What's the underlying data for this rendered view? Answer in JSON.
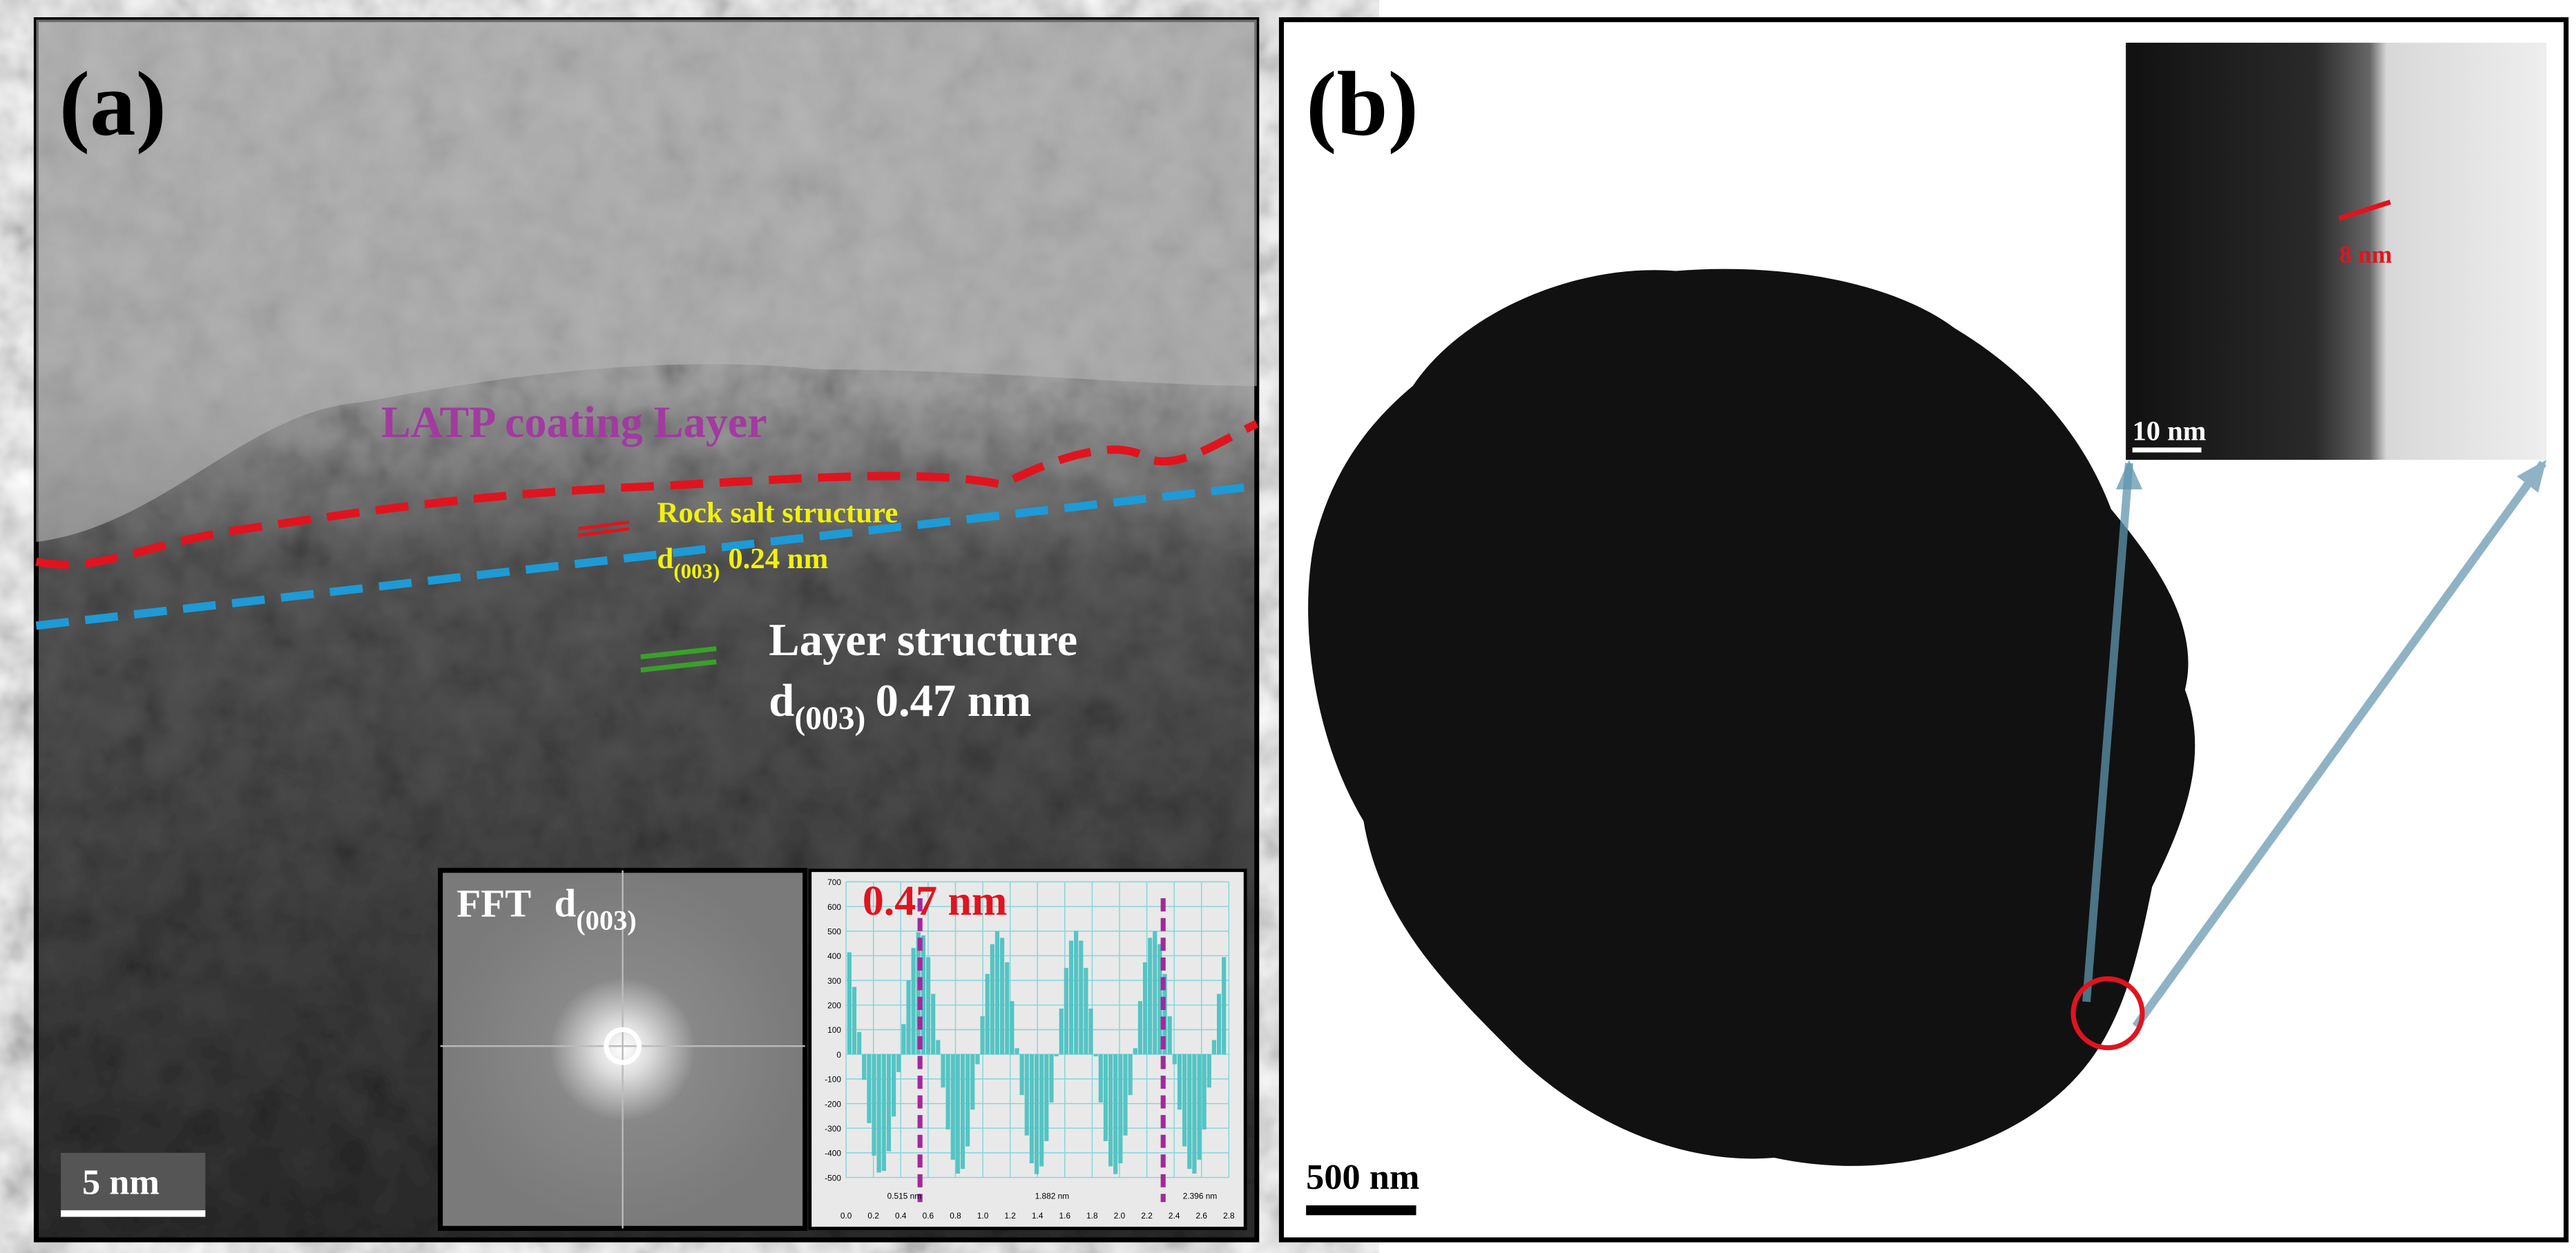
{
  "panel_a": {
    "label": "(a)",
    "coating_label": "LATP coating Layer",
    "rock_salt": {
      "title": "Rock salt structure",
      "d": "d",
      "sub": "(003)",
      "spacing": "0.24 nm"
    },
    "layer": {
      "title": "Layer structure",
      "d": "d",
      "sub": "(003)",
      "spacing": "0.47 nm"
    },
    "fft": {
      "title": "FFT",
      "d": "d",
      "sub": "(003)"
    },
    "profile": {
      "label": "0.47 nm",
      "yticks": [
        "700",
        "600",
        "500",
        "400",
        "300",
        "200",
        "100",
        "0",
        "-100",
        "-200",
        "-300",
        "-400",
        "-500"
      ],
      "xticks": [
        "0.0",
        "0.2",
        "0.4",
        "0.6",
        "0.8",
        "1.0",
        "1.2",
        "1.4",
        "1.6",
        "1.8",
        "2.0",
        "2.2",
        "2.4",
        "2.6",
        "2.8"
      ],
      "markers": [
        "0.515 nm",
        "1.882 nm",
        "2.396 nm"
      ]
    },
    "scale_bar": "5 nm"
  },
  "panel_b": {
    "label": "(b)",
    "scale_bar": "500 nm",
    "inset": {
      "thickness": "8 nm",
      "scale_bar": "10 nm"
    }
  }
}
